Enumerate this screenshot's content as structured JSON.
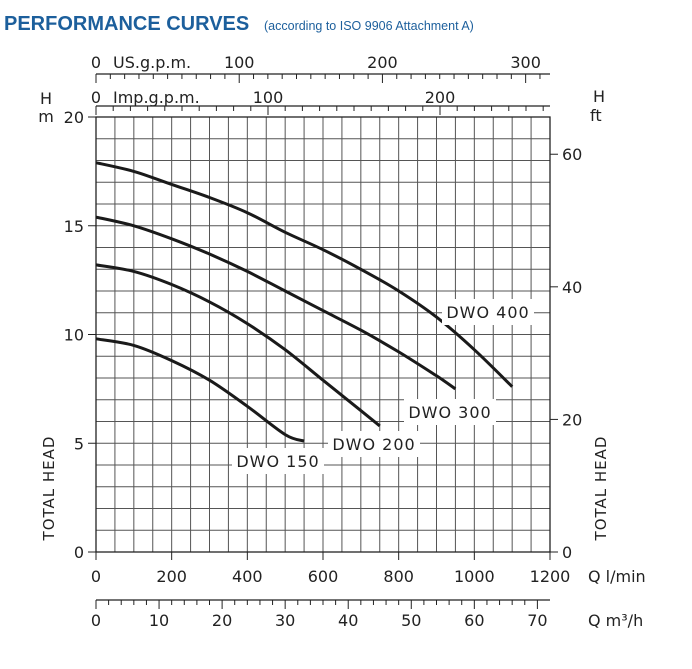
{
  "header": {
    "title": "PERFORMANCE CURVES",
    "subtitle": "(according to ISO 9906 Attachment A)"
  },
  "colors": {
    "title": "#1c5f9c",
    "grid": "#555555",
    "curve": "#1a1a1a"
  },
  "chart_data": {
    "type": "line",
    "grid": true,
    "x": {
      "label": "Q l/min",
      "lim": [
        0,
        1200
      ],
      "ticks": [
        0,
        200,
        400,
        600,
        800,
        1000,
        1200
      ]
    },
    "y": {
      "unit_symbol": "H",
      "unit": "m",
      "label": "TOTAL HEAD",
      "lim": [
        0,
        20
      ],
      "ticks": [
        0,
        5,
        10,
        15,
        20
      ]
    },
    "y_right": {
      "unit_symbol": "H",
      "unit": "ft",
      "label": "TOTAL HEAD",
      "ticks": [
        0,
        20,
        40,
        60
      ]
    },
    "x_top_us": {
      "label": "US.g.p.m.",
      "ticks": [
        0,
        100,
        200,
        300
      ]
    },
    "x_top_imp": {
      "label": "Imp.g.p.m.",
      "ticks": [
        0,
        100,
        200
      ]
    },
    "x_bottom_m3h": {
      "label": "Q m³/h",
      "ticks": [
        0,
        10,
        20,
        30,
        40,
        50,
        60,
        70
      ]
    },
    "series": [
      {
        "name": "DWO 150",
        "x": [
          0,
          100,
          200,
          300,
          400,
          500,
          550
        ],
        "y": [
          9.8,
          9.5,
          8.8,
          7.9,
          6.7,
          5.4,
          5.1
        ]
      },
      {
        "name": "DWO 200",
        "x": [
          0,
          100,
          200,
          300,
          400,
          500,
          600,
          700,
          750
        ],
        "y": [
          13.2,
          12.9,
          12.3,
          11.5,
          10.5,
          9.3,
          7.9,
          6.5,
          5.8
        ]
      },
      {
        "name": "DWO 300",
        "x": [
          0,
          100,
          200,
          300,
          400,
          500,
          600,
          700,
          800,
          900,
          950
        ],
        "y": [
          15.4,
          15.0,
          14.4,
          13.7,
          12.9,
          12.0,
          11.1,
          10.2,
          9.2,
          8.1,
          7.5
        ]
      },
      {
        "name": "DWO 400",
        "x": [
          0,
          100,
          200,
          300,
          400,
          500,
          600,
          700,
          800,
          900,
          1000,
          1100
        ],
        "y": [
          17.9,
          17.5,
          16.9,
          16.3,
          15.6,
          14.7,
          13.9,
          13.0,
          12.0,
          10.8,
          9.3,
          7.6
        ]
      }
    ]
  }
}
